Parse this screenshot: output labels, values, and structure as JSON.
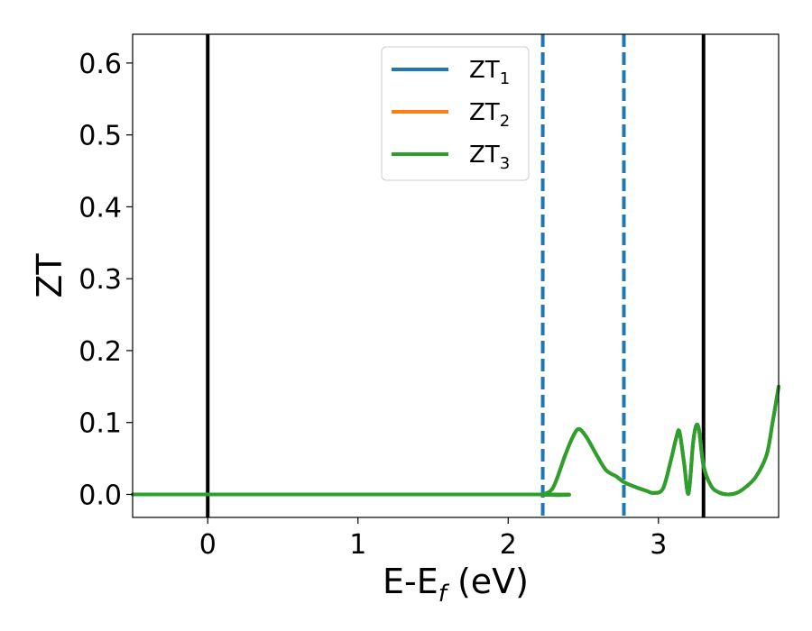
{
  "chart_data": {
    "type": "line",
    "xlabel": "E-E",
    "xlabel_sub": "f",
    "xlabel_unit": " (eV)",
    "ylabel": "ZT",
    "xlim": [
      -0.5,
      3.8
    ],
    "ylim": [
      -0.032,
      0.64
    ],
    "xticks": [
      0,
      1,
      2,
      3
    ],
    "xtick_labels": [
      "0",
      "1",
      "2",
      "3"
    ],
    "yticks": [
      0.0,
      0.1,
      0.2,
      0.3,
      0.4,
      0.5,
      0.6
    ],
    "ytick_labels": [
      "0.0",
      "0.1",
      "0.2",
      "0.3",
      "0.4",
      "0.5",
      "0.6"
    ],
    "grid": false,
    "legend_placement": "top-center",
    "vertical_lines": [
      {
        "x": 0.0,
        "style": "solid",
        "color": "#000000"
      },
      {
        "x": 3.3,
        "style": "solid",
        "color": "#000000"
      },
      {
        "x": 2.23,
        "style": "dashed",
        "color": "#1f77b4"
      },
      {
        "x": 2.77,
        "style": "dashed",
        "color": "#1f77b4"
      }
    ],
    "series": [
      {
        "name": "ZT",
        "sub": "1",
        "color": "#1f77b4",
        "x": [
          -0.5,
          2.2,
          2.23,
          2.3,
          2.38,
          2.43,
          2.47,
          2.52,
          2.58,
          2.65,
          2.72,
          2.77,
          2.85,
          2.92,
          2.97,
          3.03,
          3.08,
          3.12,
          3.14,
          3.17,
          3.2,
          3.23,
          3.25,
          3.27,
          3.3,
          3.35,
          3.4,
          3.46,
          3.52,
          3.58,
          3.65,
          3.72,
          3.76,
          3.8
        ],
        "y": [
          0.0,
          0.0,
          0.0,
          0.01,
          0.055,
          0.08,
          0.091,
          0.08,
          0.058,
          0.034,
          0.025,
          0.017,
          0.01,
          0.005,
          0.002,
          0.008,
          0.045,
          0.08,
          0.087,
          0.045,
          0.001,
          0.07,
          0.095,
          0.09,
          0.04,
          0.012,
          0.003,
          0.0,
          0.002,
          0.01,
          0.025,
          0.055,
          0.1,
          0.15
        ]
      },
      {
        "name": "ZT",
        "sub": "2",
        "color": "#ff7f0e",
        "x": [
          -0.5,
          2.2,
          2.23,
          2.3,
          2.38,
          2.43,
          2.47,
          2.52,
          2.58,
          2.65,
          2.72,
          2.77,
          2.85,
          2.92,
          2.97,
          3.03,
          3.08,
          3.12,
          3.14,
          3.17,
          3.2,
          3.23,
          3.25,
          3.27,
          3.3,
          3.35,
          3.4,
          3.46,
          3.52,
          3.58,
          3.65,
          3.72,
          3.76,
          3.8
        ],
        "y": [
          0.0,
          0.0,
          0.0,
          0.01,
          0.055,
          0.08,
          0.091,
          0.08,
          0.058,
          0.034,
          0.025,
          0.017,
          0.01,
          0.005,
          0.002,
          0.008,
          0.045,
          0.08,
          0.087,
          0.045,
          0.001,
          0.07,
          0.095,
          0.09,
          0.04,
          0.012,
          0.003,
          0.0,
          0.002,
          0.01,
          0.025,
          0.055,
          0.1,
          0.15
        ]
      },
      {
        "name": "ZT",
        "sub": "3",
        "color": "#2ca02c",
        "x": [
          -0.5,
          2.2,
          2.23,
          2.3,
          2.38,
          2.43,
          2.47,
          2.52,
          2.58,
          2.65,
          2.72,
          2.77,
          2.85,
          2.92,
          2.97,
          3.03,
          3.08,
          3.12,
          3.14,
          3.17,
          3.2,
          3.23,
          3.25,
          3.27,
          3.3,
          3.35,
          3.4,
          3.46,
          3.52,
          3.58,
          3.65,
          3.72,
          3.76,
          3.8
        ],
        "y": [
          0.0,
          0.0,
          0.0,
          0.01,
          0.055,
          0.08,
          0.091,
          0.08,
          0.058,
          0.034,
          0.025,
          0.017,
          0.01,
          0.005,
          0.002,
          0.008,
          0.045,
          0.08,
          0.087,
          0.045,
          0.001,
          0.07,
          0.095,
          0.09,
          0.04,
          0.012,
          0.003,
          0.0,
          0.002,
          0.01,
          0.025,
          0.055,
          0.1,
          0.15
        ]
      }
    ]
  }
}
